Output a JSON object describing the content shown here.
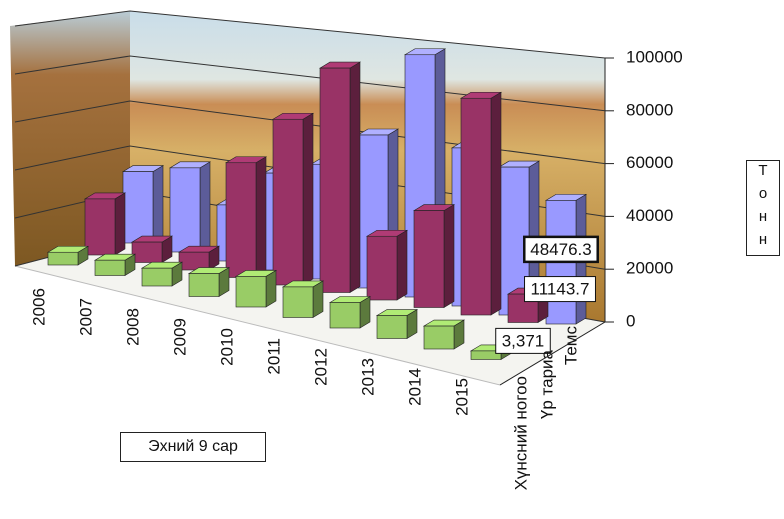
{
  "chart_data": {
    "type": "bar3d",
    "y_label": "Тонн",
    "annotation": "Эхний 9 сар",
    "categories": [
      "2006",
      "2007",
      "2008",
      "2009",
      "2010",
      "2011",
      "2012",
      "2013",
      "2014",
      "2015"
    ],
    "series": [
      {
        "name": "Темс",
        "color": "#9999ff",
        "values": [
          28000,
          33000,
          22000,
          38000,
          45000,
          60000,
          95000,
          62000,
          58000,
          48476.3
        ],
        "value_labels": [
          null,
          null,
          null,
          null,
          null,
          null,
          null,
          null,
          null,
          "48476.3"
        ]
      },
      {
        "name": "Үр тариа",
        "color": "#993366",
        "values": [
          22000,
          8000,
          7000,
          45000,
          65000,
          88000,
          25000,
          38000,
          85000,
          11143.7
        ],
        "value_labels": [
          null,
          null,
          null,
          null,
          null,
          null,
          null,
          null,
          null,
          "11143.7"
        ]
      },
      {
        "name": "Хүнсний ногоо",
        "color": "#99cc66",
        "values": [
          5000,
          6000,
          7000,
          9000,
          12000,
          12000,
          10000,
          9000,
          9000,
          3371
        ],
        "value_labels": [
          null,
          null,
          null,
          null,
          null,
          null,
          null,
          null,
          null,
          "3,371"
        ]
      }
    ],
    "ylim": [
      0,
      100000
    ],
    "yticks": [
      0,
      20000,
      40000,
      60000,
      80000,
      100000
    ],
    "grid": true
  }
}
